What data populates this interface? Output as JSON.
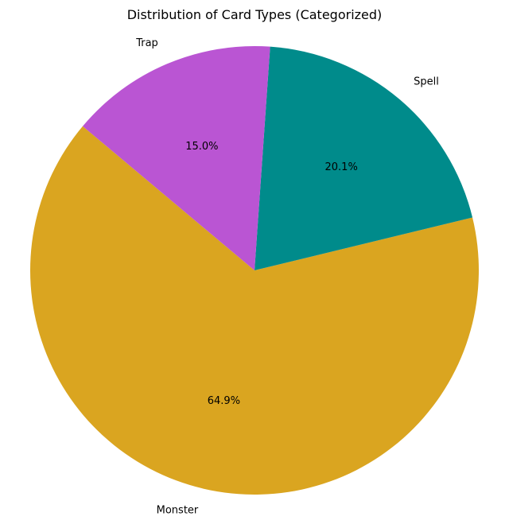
{
  "chart_data": {
    "type": "pie",
    "title": "Distribution of Card Types (Categorized)",
    "categories": [
      "Monster",
      "Spell",
      "Trap"
    ],
    "values": [
      64.9,
      20.1,
      15.0
    ],
    "value_labels": [
      "64.9%",
      "20.1%",
      "15.0%"
    ],
    "colors": [
      "#DAA520",
      "#008B8B",
      "#BA55D3"
    ],
    "start_angle_deg": 140,
    "direction": "counterclockwise",
    "legend": "none"
  }
}
